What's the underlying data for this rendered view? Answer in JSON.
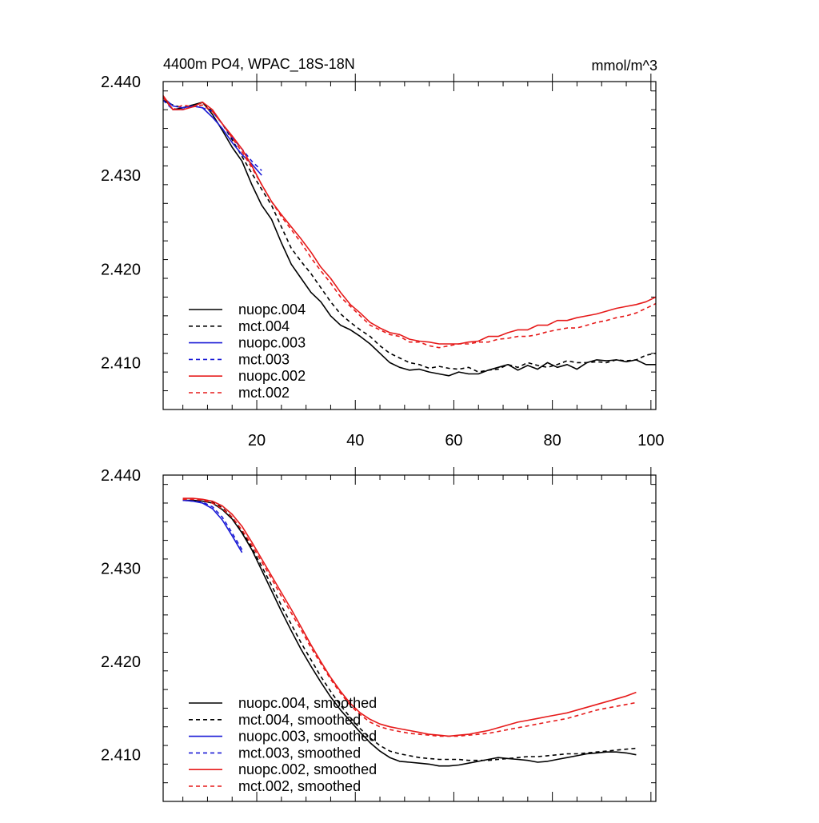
{
  "chart_data": [
    {
      "type": "line",
      "title": "4400m PO4, WPAC_18S-18N",
      "units": "mmol/m^3",
      "xlim": [
        1,
        101
      ],
      "ylim": [
        2.405,
        2.44
      ],
      "x_ticks": [
        20,
        40,
        60,
        80,
        100
      ],
      "x_tick_labels": [
        "20",
        "40",
        "60",
        "80",
        "100"
      ],
      "y_ticks": [
        2.44,
        2.43,
        2.42,
        2.41
      ],
      "y_tick_labels": [
        "2.440",
        "2.430",
        "2.420",
        "2.410"
      ],
      "legend_position": "bottom-left",
      "series": [
        {
          "name": "nuopc.004",
          "color": "#000000",
          "dash": "solid",
          "x": [
            1,
            3,
            5,
            7,
            9,
            11,
            13,
            15,
            17,
            19,
            21,
            23,
            25,
            27,
            29,
            31,
            33,
            35,
            37,
            39,
            41,
            43,
            45,
            47,
            49,
            51,
            53,
            55,
            57,
            59,
            61,
            63,
            65,
            67,
            69,
            71,
            73,
            75,
            77,
            79,
            81,
            83,
            85,
            87,
            89,
            91,
            93,
            95,
            97,
            99,
            101
          ],
          "y": [
            2.4383,
            2.437,
            2.4372,
            2.4375,
            2.4378,
            2.4365,
            2.4348,
            2.433,
            2.4315,
            2.429,
            2.4268,
            2.4253,
            2.4228,
            2.4205,
            2.419,
            2.4175,
            2.4165,
            2.415,
            2.414,
            2.4135,
            2.4128,
            2.412,
            2.411,
            2.41,
            2.4095,
            2.4092,
            2.4093,
            2.409,
            2.4088,
            2.4086,
            2.409,
            2.4088,
            2.4088,
            2.4092,
            2.4095,
            2.4098,
            2.4092,
            2.4097,
            2.4093,
            2.41,
            2.4095,
            2.4098,
            2.4093,
            2.41,
            2.4103,
            2.4102,
            2.4103,
            2.4101,
            2.4103,
            2.4098,
            2.4098
          ]
        },
        {
          "name": "mct.004",
          "color": "#000000",
          "dash": "dashed",
          "x": [
            1,
            3,
            5,
            7,
            9,
            11,
            13,
            15,
            17,
            19,
            21,
            23,
            25,
            27,
            29,
            31,
            33,
            35,
            37,
            39,
            41,
            43,
            45,
            47,
            49,
            51,
            53,
            55,
            57,
            59,
            61,
            63,
            65,
            67,
            69,
            71,
            73,
            75,
            77,
            79,
            81,
            83,
            85,
            87,
            89,
            91,
            93,
            95,
            97,
            99,
            101
          ],
          "y": [
            2.438,
            2.4375,
            2.4372,
            2.4375,
            2.4377,
            2.4368,
            2.4355,
            2.4338,
            2.432,
            2.4302,
            2.4285,
            2.4268,
            2.4245,
            2.4222,
            2.4208,
            2.4195,
            2.418,
            2.4165,
            2.4152,
            2.4143,
            2.4135,
            2.4128,
            2.4118,
            2.411,
            2.4105,
            2.41,
            2.4098,
            2.4094,
            2.4096,
            2.4094,
            2.4093,
            2.4095,
            2.409,
            2.4092,
            2.4093,
            2.4098,
            2.4095,
            2.41,
            2.4097,
            2.4095,
            2.4098,
            2.4102,
            2.41,
            2.41,
            2.4101,
            2.41,
            2.4103,
            2.4102,
            2.4103,
            2.4108,
            2.411
          ]
        },
        {
          "name": "nuopc.003",
          "color": "#1a1ad6",
          "dash": "solid",
          "x": [
            1,
            3,
            5,
            7,
            9,
            11,
            13,
            15,
            17,
            19,
            21
          ],
          "y": [
            2.4383,
            2.4374,
            2.4372,
            2.4374,
            2.4372,
            2.4362,
            2.435,
            2.4335,
            2.4322,
            2.4312,
            2.43
          ]
        },
        {
          "name": "mct.003",
          "color": "#1a1ad6",
          "dash": "dashed",
          "x": [
            1,
            3,
            5,
            7,
            9,
            11,
            13,
            15,
            17,
            19,
            21
          ],
          "y": [
            2.438,
            2.437,
            2.437,
            2.4374,
            2.4372,
            2.4368,
            2.4355,
            2.434,
            2.4328,
            2.4315,
            2.4305
          ]
        },
        {
          "name": "nuopc.002",
          "color": "#e61a1a",
          "dash": "solid",
          "x": [
            1,
            3,
            5,
            7,
            9,
            11,
            13,
            15,
            17,
            19,
            21,
            23,
            25,
            27,
            29,
            31,
            33,
            35,
            37,
            39,
            41,
            43,
            45,
            47,
            49,
            51,
            53,
            55,
            57,
            59,
            61,
            63,
            65,
            67,
            69,
            71,
            73,
            75,
            77,
            79,
            81,
            83,
            85,
            87,
            89,
            91,
            93,
            95,
            97,
            99,
            101
          ],
          "y": [
            2.4385,
            2.437,
            2.437,
            2.4373,
            2.4378,
            2.437,
            2.4355,
            2.4342,
            2.4328,
            2.431,
            2.429,
            2.4272,
            2.4258,
            2.4245,
            2.4232,
            2.4218,
            2.4202,
            2.419,
            2.4175,
            2.4162,
            2.4153,
            2.4143,
            2.4137,
            2.4132,
            2.413,
            2.4125,
            2.4123,
            2.4122,
            2.412,
            2.412,
            2.412,
            2.4122,
            2.4123,
            2.4128,
            2.4128,
            2.4132,
            2.4135,
            2.4135,
            2.414,
            2.414,
            2.4145,
            2.4145,
            2.4148,
            2.415,
            2.4152,
            2.4155,
            2.4158,
            2.416,
            2.4162,
            2.4165,
            2.417
          ]
        },
        {
          "name": "mct.002",
          "color": "#e61a1a",
          "dash": "dashed",
          "x": [
            1,
            3,
            5,
            7,
            9,
            11,
            13,
            15,
            17,
            19,
            21,
            23,
            25,
            27,
            29,
            31,
            33,
            35,
            37,
            39,
            41,
            43,
            45,
            47,
            49,
            51,
            53,
            55,
            57,
            59,
            61,
            63,
            65,
            67,
            69,
            71,
            73,
            75,
            77,
            79,
            81,
            83,
            85,
            87,
            89,
            91,
            93,
            95,
            97,
            99,
            101
          ],
          "y": [
            2.4383,
            2.437,
            2.4375,
            2.4373,
            2.4375,
            2.4368,
            2.4355,
            2.434,
            2.4325,
            2.4308,
            2.429,
            2.4272,
            2.4256,
            2.4242,
            2.4228,
            2.4212,
            2.4198,
            2.4185,
            2.417,
            2.416,
            2.415,
            2.414,
            2.4135,
            2.413,
            2.4128,
            2.4122,
            2.4122,
            2.4118,
            2.4116,
            2.4118,
            2.412,
            2.412,
            2.4122,
            2.4122,
            2.4125,
            2.4126,
            2.4128,
            2.4128,
            2.413,
            2.4133,
            2.4135,
            2.4137,
            2.4137,
            2.414,
            2.4143,
            2.4145,
            2.4148,
            2.415,
            2.4153,
            2.4158,
            2.4163
          ]
        }
      ]
    },
    {
      "type": "line",
      "xlim": [
        1,
        101
      ],
      "ylim": [
        2.405,
        2.44
      ],
      "x_ticks": [
        20,
        40,
        60,
        80,
        100
      ],
      "y_ticks": [
        2.44,
        2.43,
        2.42,
        2.41
      ],
      "y_tick_labels": [
        "2.440",
        "2.430",
        "2.420",
        "2.410"
      ],
      "legend_position": "bottom-left",
      "series": [
        {
          "name": "nuopc.004, smoothed",
          "color": "#000000",
          "dash": "solid",
          "x": [
            5,
            7,
            9,
            11,
            13,
            15,
            17,
            19,
            21,
            23,
            25,
            27,
            29,
            31,
            33,
            35,
            37,
            39,
            41,
            43,
            45,
            47,
            49,
            51,
            53,
            55,
            57,
            59,
            61,
            63,
            65,
            67,
            69,
            71,
            73,
            75,
            77,
            79,
            81,
            83,
            85,
            87,
            89,
            91,
            93,
            95,
            97
          ],
          "y": [
            2.4373,
            2.4373,
            2.4372,
            2.437,
            2.4363,
            2.4353,
            2.4338,
            2.432,
            2.4298,
            2.4276,
            2.4254,
            2.4233,
            2.4213,
            2.4195,
            2.4178,
            2.4162,
            2.4148,
            2.4136,
            2.4124,
            2.4113,
            2.4104,
            2.4097,
            2.4093,
            2.4092,
            2.4091,
            2.409,
            2.4088,
            2.4088,
            2.4089,
            2.4091,
            2.4093,
            2.4095,
            2.4097,
            2.4096,
            2.4095,
            2.4094,
            2.4092,
            2.4093,
            2.4095,
            2.4097,
            2.4099,
            2.4101,
            2.4102,
            2.4103,
            2.4103,
            2.4102,
            2.41
          ]
        },
        {
          "name": "mct.004, smoothed",
          "color": "#000000",
          "dash": "dashed",
          "x": [
            5,
            7,
            9,
            11,
            13,
            15,
            17,
            19,
            21,
            23,
            25,
            27,
            29,
            31,
            33,
            35,
            37,
            39,
            41,
            43,
            45,
            47,
            49,
            51,
            53,
            55,
            57,
            59,
            61,
            63,
            65,
            67,
            69,
            71,
            73,
            75,
            77,
            79,
            81,
            83,
            85,
            87,
            89,
            91,
            93,
            95,
            97
          ],
          "y": [
            2.4374,
            2.4374,
            2.4373,
            2.4371,
            2.4365,
            2.4355,
            2.434,
            2.4322,
            2.4302,
            2.4282,
            2.426,
            2.424,
            2.422,
            2.4202,
            2.4184,
            2.4168,
            2.4153,
            2.414,
            2.4128,
            2.4118,
            2.411,
            2.4104,
            2.4101,
            2.4099,
            2.4097,
            2.4096,
            2.4095,
            2.4095,
            2.4095,
            2.4094,
            2.4094,
            2.4094,
            2.4095,
            2.4096,
            2.4097,
            2.4098,
            2.4098,
            2.4099,
            2.41,
            2.4101,
            2.4101,
            2.4102,
            2.4103,
            2.4104,
            2.4105,
            2.4106,
            2.4107
          ]
        },
        {
          "name": "nuopc.003, smoothed",
          "color": "#1a1ad6",
          "dash": "solid",
          "x": [
            5,
            7,
            9,
            11,
            13,
            15,
            17
          ],
          "y": [
            2.4373,
            2.4372,
            2.437,
            2.4364,
            2.4352,
            2.4335,
            2.4317
          ]
        },
        {
          "name": "mct.003, smoothed",
          "color": "#1a1ad6",
          "dash": "dashed",
          "x": [
            5,
            7,
            9,
            11,
            13,
            15,
            17
          ],
          "y": [
            2.4373,
            2.4372,
            2.4371,
            2.4366,
            2.4355,
            2.4338,
            2.432
          ]
        },
        {
          "name": "nuopc.002, smoothed",
          "color": "#e61a1a",
          "dash": "solid",
          "x": [
            5,
            7,
            9,
            11,
            13,
            15,
            17,
            19,
            21,
            23,
            25,
            27,
            29,
            31,
            33,
            35,
            37,
            39,
            41,
            43,
            45,
            47,
            49,
            51,
            53,
            55,
            57,
            59,
            61,
            63,
            65,
            67,
            69,
            71,
            73,
            75,
            77,
            79,
            81,
            83,
            85,
            87,
            89,
            91,
            93,
            95,
            97
          ],
          "y": [
            2.4375,
            2.4375,
            2.4374,
            2.4372,
            2.4367,
            2.4358,
            2.4345,
            2.4328,
            2.431,
            2.4292,
            2.4274,
            2.4256,
            2.4237,
            2.4218,
            2.42,
            2.4183,
            2.4168,
            2.4155,
            2.4145,
            2.4138,
            2.4133,
            2.413,
            2.4128,
            2.4126,
            2.4124,
            2.4122,
            2.4121,
            2.412,
            2.4121,
            2.4122,
            2.4124,
            2.4126,
            2.4129,
            2.4132,
            2.4135,
            2.4137,
            2.4139,
            2.4141,
            2.4143,
            2.4145,
            2.4148,
            2.4151,
            2.4154,
            2.4157,
            2.416,
            2.4163,
            2.4167
          ]
        },
        {
          "name": "mct.002, smoothed",
          "color": "#e61a1a",
          "dash": "dashed",
          "x": [
            5,
            7,
            9,
            11,
            13,
            15,
            17,
            19,
            21,
            23,
            25,
            27,
            29,
            31,
            33,
            35,
            37,
            39,
            41,
            43,
            45,
            47,
            49,
            51,
            53,
            55,
            57,
            59,
            61,
            63,
            65,
            67,
            69,
            71,
            73,
            75,
            77,
            79,
            81,
            83,
            85,
            87,
            89,
            91,
            93,
            95,
            97
          ],
          "y": [
            2.4374,
            2.4374,
            2.4373,
            2.437,
            2.4364,
            2.4355,
            2.4341,
            2.4325,
            2.4307,
            2.4289,
            2.427,
            2.4252,
            2.4234,
            2.4215,
            2.4198,
            2.4181,
            2.4166,
            2.4153,
            2.4143,
            2.4135,
            2.413,
            2.4127,
            2.4125,
            2.4123,
            2.4122,
            2.4121,
            2.412,
            2.412,
            2.412,
            2.4121,
            2.4122,
            2.4123,
            2.4125,
            2.4127,
            2.4129,
            2.4131,
            2.4133,
            2.4135,
            2.4137,
            2.4139,
            2.4142,
            2.4145,
            2.4148,
            2.415,
            2.4152,
            2.4154,
            2.4156
          ]
        }
      ]
    }
  ]
}
